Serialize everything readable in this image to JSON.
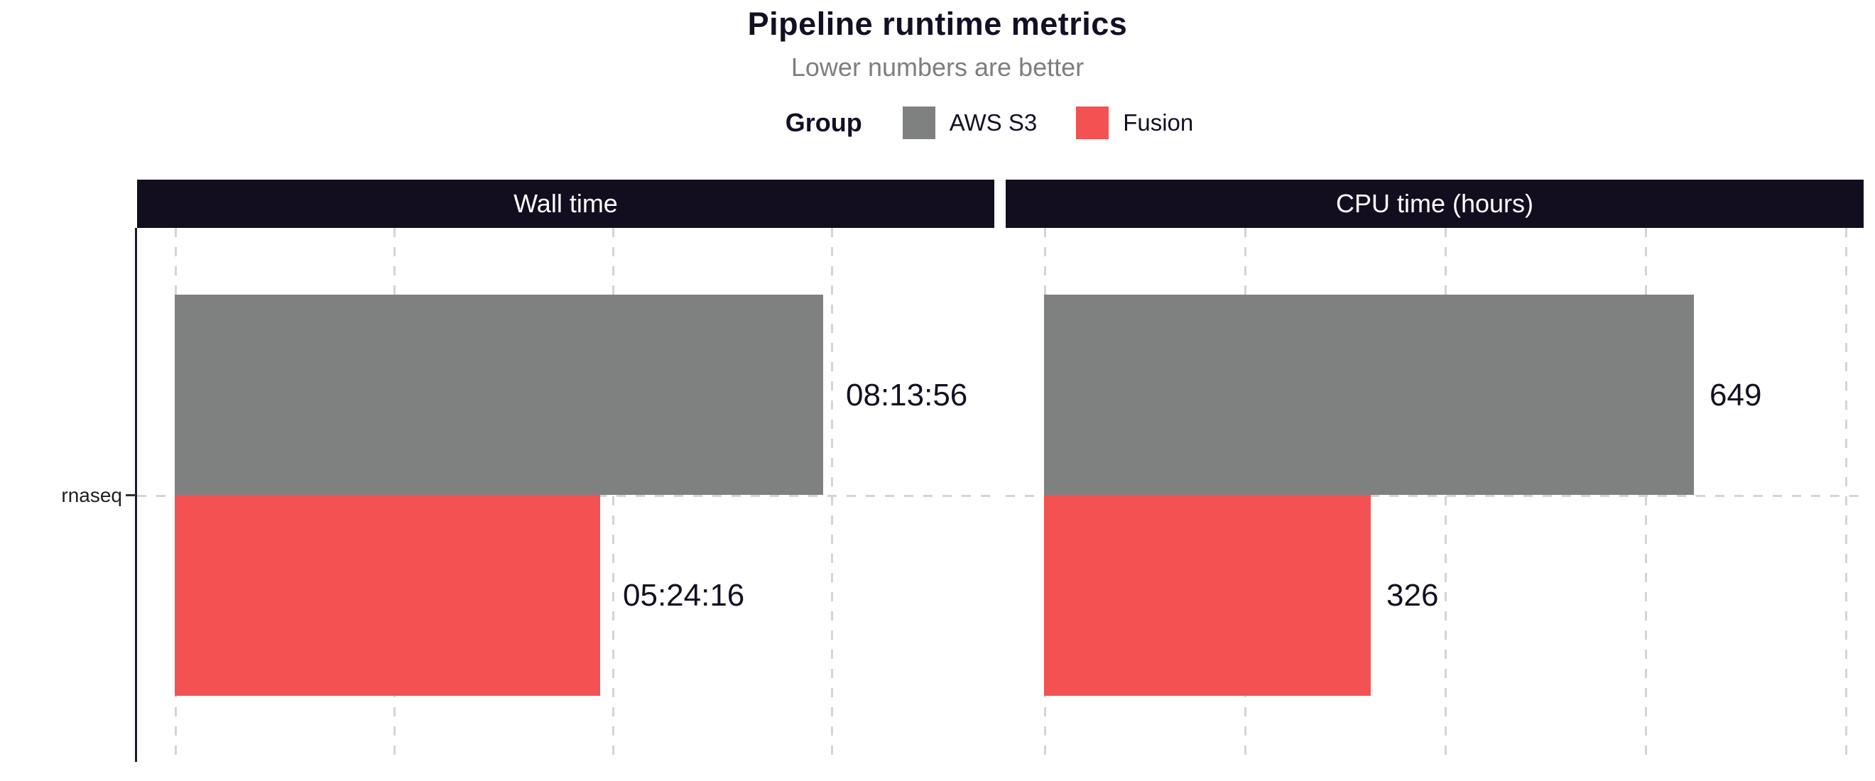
{
  "header": {
    "title": "Pipeline runtime metrics",
    "subtitle": "Lower numbers are better"
  },
  "legend": {
    "title": "Group",
    "items": [
      {
        "label": "AWS S3",
        "color": "#7f8181"
      },
      {
        "label": "Fusion",
        "color": "#f45152"
      }
    ]
  },
  "y_axis": {
    "category": "rnaseq"
  },
  "colors": {
    "strip_background": "#120e1f",
    "strip_text": "#ffffff",
    "aws_s3": "#7f8181",
    "fusion": "#f45152",
    "gridline": "#d4d4d4",
    "axis": "#1e1b29",
    "text": "#131024",
    "subtitle": "#7e7e7e"
  },
  "chart_data": [
    {
      "type": "bar",
      "orientation": "horizontal",
      "panel_title": "Wall time",
      "categories": [
        "rnaseq"
      ],
      "unit": "seconds",
      "series": [
        {
          "name": "AWS S3",
          "values": [
            29636
          ],
          "labels": [
            "08:13:56"
          ]
        },
        {
          "name": "Fusion",
          "values": [
            19456
          ],
          "labels": [
            "05:24:16"
          ]
        }
      ],
      "x_gridlines": [
        0,
        10000,
        20000,
        30000
      ],
      "xlim": [
        0,
        37500
      ],
      "grid": "dashed",
      "legend_position": "top"
    },
    {
      "type": "bar",
      "orientation": "horizontal",
      "panel_title": "CPU time (hours)",
      "categories": [
        "rnaseq"
      ],
      "unit": "hours",
      "series": [
        {
          "name": "AWS S3",
          "values": [
            649
          ],
          "labels": [
            "649"
          ]
        },
        {
          "name": "Fusion",
          "values": [
            326
          ],
          "labels": [
            "326"
          ]
        }
      ],
      "x_gridlines": [
        0,
        200,
        400,
        600,
        800
      ],
      "xlim": [
        0,
        818
      ],
      "grid": "dashed",
      "legend_position": "top"
    }
  ]
}
